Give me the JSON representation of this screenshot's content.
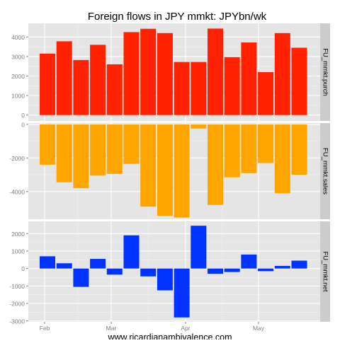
{
  "chart_data": {
    "type": "bar",
    "title": "Foreign flows in JPY mmkt: JPYbn/wk",
    "caption": "www.ricardianambivalence.com",
    "x_ticks": [
      "Feb",
      "Mar",
      "Apr",
      "May"
    ],
    "grid": true,
    "panels": [
      {
        "name": "FU_mmkt.purch",
        "color": "#ff2200",
        "ylim": [
          -300,
          4700
        ],
        "yticks": [
          0,
          1000,
          2000,
          3000,
          4000
        ],
        "values": [
          3150,
          3780,
          2820,
          3600,
          2600,
          4250,
          4420,
          4200,
          2720,
          2720,
          4430,
          2970,
          3720,
          2200,
          4200,
          3450
        ]
      },
      {
        "name": "FU_mmkt.sales",
        "color": "#ffa500",
        "ylim": [
          -5650,
          80
        ],
        "yticks": [
          0,
          -2000,
          -4000
        ],
        "values": [
          -2400,
          -3450,
          -3800,
          -3050,
          -2950,
          -2350,
          -4900,
          -5450,
          -5550,
          -250,
          -4800,
          -3150,
          -2900,
          -2300,
          -4100,
          -3000
        ]
      },
      {
        "name": "FU_mmkt.net",
        "color": "#0033ff",
        "ylim": [
          -3050,
          2700
        ],
        "yticks": [
          2000,
          1000,
          0,
          -1000,
          -2000,
          -3000
        ],
        "values": [
          700,
          300,
          -1050,
          550,
          -350,
          1900,
          -450,
          -1250,
          -2800,
          2450,
          -300,
          -200,
          800,
          -150,
          150,
          450
        ]
      }
    ]
  }
}
